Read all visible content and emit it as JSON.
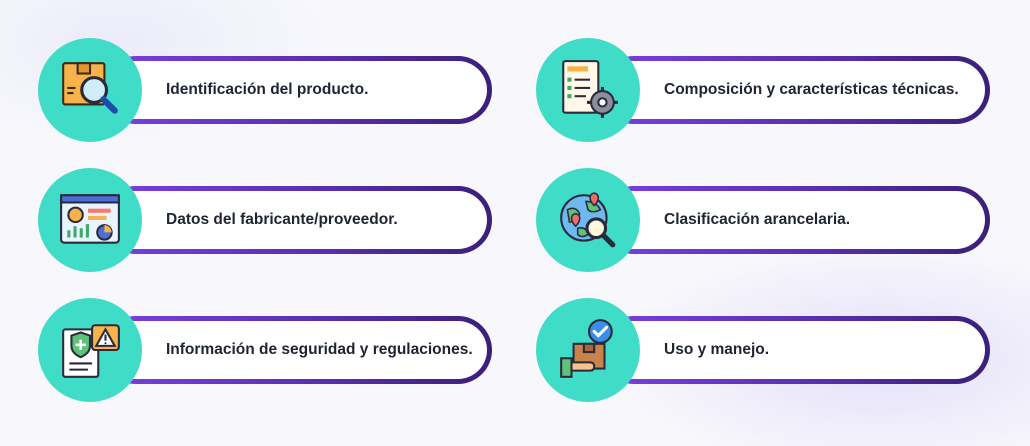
{
  "items": [
    {
      "label": "Identificación del producto.",
      "icon": "box-magnifier-icon"
    },
    {
      "label": "Composición y características técnicas.",
      "icon": "document-gear-icon"
    },
    {
      "label": "Datos del fabricante/proveedor.",
      "icon": "dashboard-profile-icon"
    },
    {
      "label": "Clasificación arancelaria.",
      "icon": "globe-search-icon"
    },
    {
      "label": "Información de seguridad y regulaciones.",
      "icon": "shield-warning-document-icon"
    },
    {
      "label": "Uso y manejo.",
      "icon": "hand-box-check-icon"
    }
  ],
  "colors": {
    "circle": "#3fdcc8",
    "pill_gradient_start": "#7b3fe0",
    "pill_gradient_end": "#3a1f7a",
    "text": "#1f2433"
  }
}
